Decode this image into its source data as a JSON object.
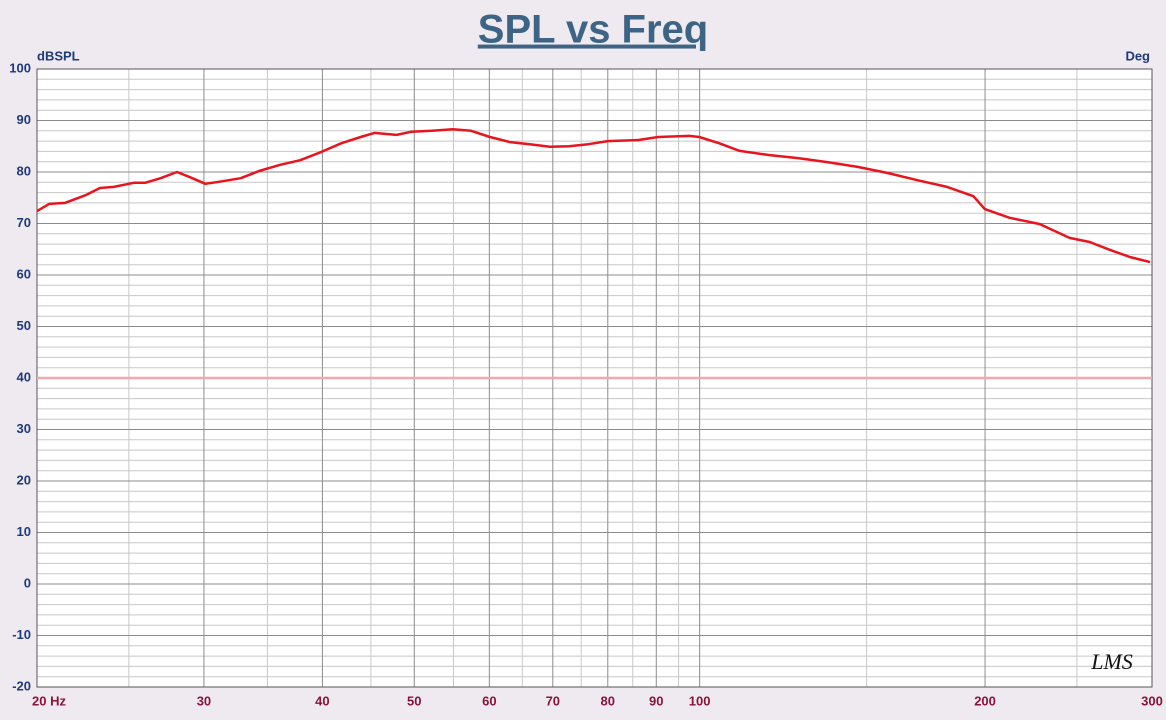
{
  "chart_data": {
    "type": "line",
    "title": "SPL vs Freq",
    "ylabel": "dBSPL",
    "y2label": "Deg",
    "annotation": "LMS",
    "xscale": "log",
    "xlim": [
      20,
      300
    ],
    "ylim": [
      -20,
      100
    ],
    "xticks": [
      {
        "value": 20,
        "label": "20 Hz"
      },
      30,
      40,
      50,
      60,
      70,
      80,
      90,
      100,
      200,
      300
    ],
    "minor_xticks": [
      25,
      35,
      45,
      55,
      65,
      75,
      85,
      95,
      150,
      250
    ],
    "yticks": [
      -20,
      -10,
      0,
      10,
      20,
      30,
      40,
      50,
      60,
      70,
      80,
      90,
      100
    ],
    "minor_yticks": [
      -18,
      -16,
      -14,
      -12,
      -8,
      -6,
      -4,
      -2,
      2,
      4,
      6,
      8,
      12,
      14,
      16,
      18,
      22,
      24,
      26,
      28,
      32,
      34,
      36,
      38,
      42,
      44,
      46,
      48,
      52,
      54,
      56,
      58,
      62,
      64,
      66,
      68,
      72,
      74,
      76,
      78,
      82,
      84,
      86,
      88,
      92,
      94,
      96,
      98
    ],
    "grid": true,
    "reference_line": 40,
    "reference_color": "#f4a7b0",
    "color": "#e8141e",
    "x": [
      20,
      20.6,
      21.4,
      22.5,
      23.3,
      24.1,
      25.3,
      26,
      27,
      28.1,
      29,
      30.1,
      31.1,
      32.8,
      34.3,
      36.1,
      37.9,
      39.9,
      41.9,
      43.9,
      45.4,
      47.9,
      49.6,
      52.2,
      54.9,
      57.4,
      60.1,
      63.1,
      66.2,
      69.5,
      72.8,
      76.3,
      80,
      86,
      90.4,
      97.5,
      99.9,
      104.8,
      110.2,
      118.2,
      127,
      136.6,
      146.8,
      157.9,
      169.7,
      182.4,
      194.4,
      199.9,
      212.3,
      228.3,
      245.6,
      257.9,
      270.7,
      284.3,
      298.6
    ],
    "values": [
      72.4,
      73.8,
      74,
      75.5,
      76.9,
      77.1,
      77.9,
      77.9,
      78.8,
      80,
      79,
      77.7,
      78.1,
      78.8,
      80.2,
      81.4,
      82.3,
      83.9,
      85.6,
      86.8,
      87.6,
      87.2,
      87.8,
      88,
      88.3,
      88,
      86.8,
      85.8,
      85.4,
      84.9,
      85,
      85.4,
      86,
      86.2,
      86.8,
      87,
      86.8,
      85.6,
      84.1,
      83.3,
      82.7,
      81.9,
      81,
      79.8,
      78.4,
      77.1,
      75.3,
      72.8,
      71.1,
      69.9,
      67.2,
      66.4,
      64.9,
      63.5,
      62.5
    ]
  }
}
